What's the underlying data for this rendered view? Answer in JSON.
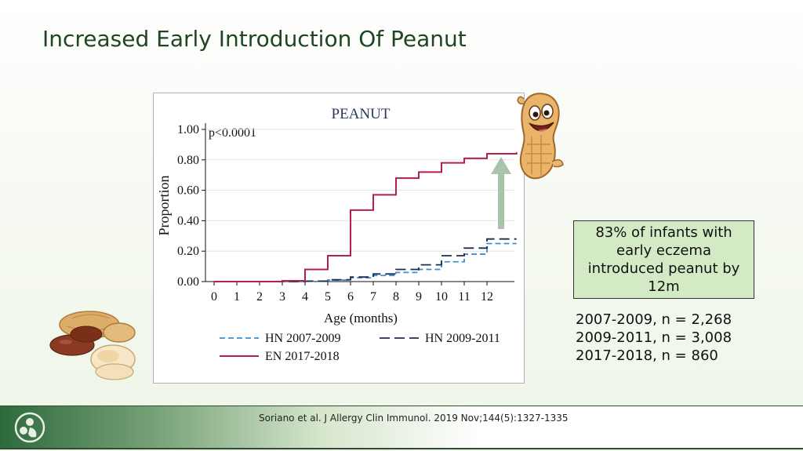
{
  "slide": {
    "title": "Increased Early Introduction Of Peanut",
    "citation": "Soriano et al. J Allergy Clin Immunol. 2019 Nov;144(5):1327-1335"
  },
  "callout": {
    "text": "83% of infants with early eczema introduced peanut by 12m"
  },
  "n_counts": [
    "2007-2009, n = 2,268",
    "2009-2011, n = 3,008",
    "2017-2018, n = 860"
  ],
  "colors": {
    "title": "#1e4620",
    "hn_2007": "#3a8fd6",
    "hn_2009": "#1f2d4d",
    "en_2017": "#b5204a",
    "arrow": "#a9c4ab",
    "callout_bg": "#d4eac4"
  },
  "icons": [
    "peanut-character-icon",
    "peanut-pile-icon",
    "family-logo-icon",
    "up-arrow-icon"
  ],
  "chart_data": {
    "type": "line",
    "step": true,
    "title": "PEANUT",
    "annotation": "p<0.0001",
    "xlabel": "Age (months)",
    "ylabel": "Proportion",
    "xlim": [
      0,
      13.3
    ],
    "ylim": [
      0,
      1
    ],
    "x_ticks": [
      "0",
      "1",
      "2",
      "3",
      "4",
      "5",
      "6",
      "7",
      "8",
      "9",
      "10",
      "11",
      "12"
    ],
    "y_ticks": [
      "0.00",
      "0.20",
      "0.40",
      "0.60",
      "0.80",
      "1.00"
    ],
    "grid": "horizontal",
    "legend_position": "bottom",
    "series": [
      {
        "name": "HN 2007-2009",
        "style": "dashed",
        "x": [
          0,
          1,
          2,
          3,
          4,
          5,
          6,
          7,
          8,
          9,
          10,
          11,
          12,
          13.3
        ],
        "y": [
          0,
          0,
          0,
          0,
          0.002,
          0.01,
          0.025,
          0.04,
          0.06,
          0.08,
          0.13,
          0.18,
          0.25,
          0.25
        ]
      },
      {
        "name": "HN 2009-2011",
        "style": "longdash",
        "x": [
          0,
          1,
          2,
          3,
          4,
          5,
          6,
          7,
          8,
          9,
          10,
          11,
          12,
          13.3
        ],
        "y": [
          0,
          0,
          0,
          0,
          0.003,
          0.012,
          0.03,
          0.05,
          0.08,
          0.11,
          0.17,
          0.22,
          0.28,
          0.28
        ]
      },
      {
        "name": "EN 2017-2018",
        "style": "solid",
        "x": [
          0,
          1,
          2,
          3,
          4,
          5,
          6,
          7,
          8,
          9,
          10,
          11,
          12,
          13.3
        ],
        "y": [
          0,
          0,
          0,
          0.005,
          0.08,
          0.17,
          0.47,
          0.57,
          0.68,
          0.72,
          0.78,
          0.81,
          0.84,
          0.85
        ]
      }
    ]
  }
}
